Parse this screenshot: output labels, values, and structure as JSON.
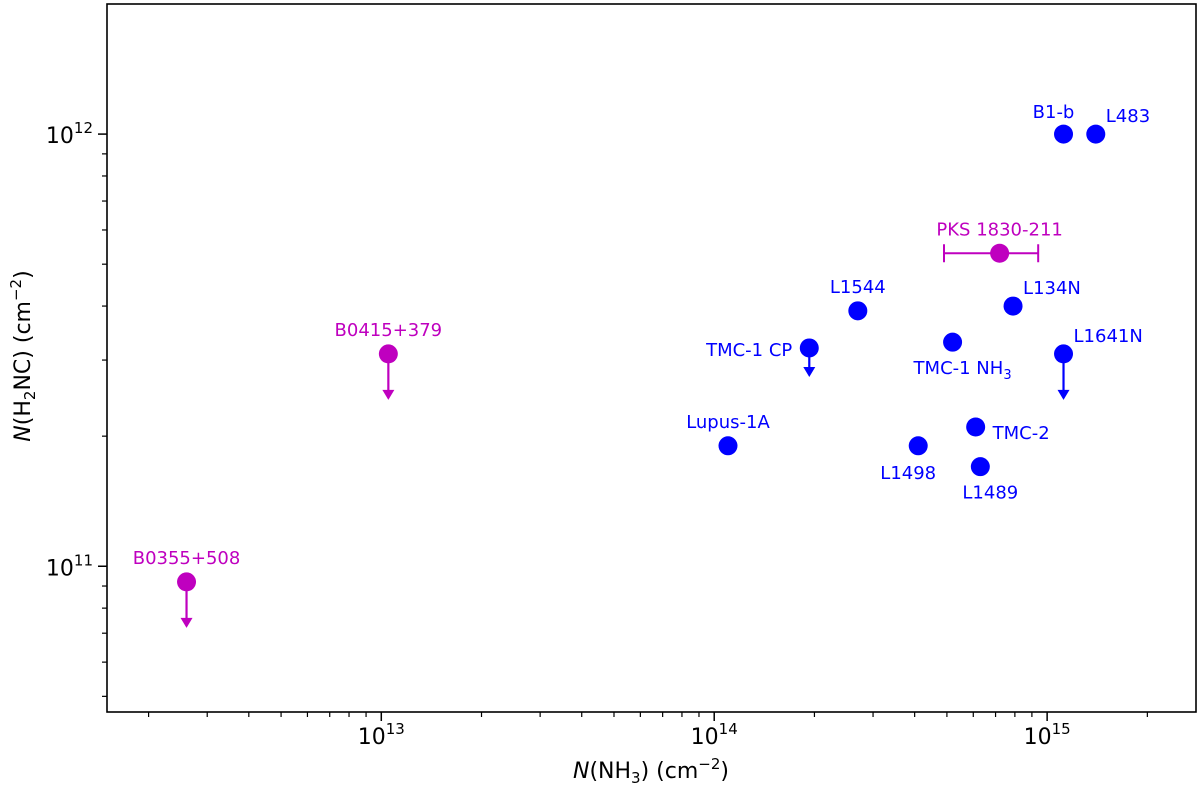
{
  "chart_data": {
    "type": "scatter",
    "title": "",
    "x_axis": {
      "scale": "log",
      "label_italic": "N",
      "label_rest": "(NH",
      "label_sub": "3",
      "label_tail": ") (cm",
      "label_sup": "−2",
      "label_close": ")",
      "range": [
        1500000000000.0,
        2800000000000000.0
      ],
      "ticks": [
        {
          "value": 10000000000000.0,
          "base": "10",
          "exp": "13"
        },
        {
          "value": 100000000000000.0,
          "base": "10",
          "exp": "14"
        },
        {
          "value": 1000000000000000.0,
          "base": "10",
          "exp": "15"
        }
      ]
    },
    "y_axis": {
      "scale": "log",
      "label_italic": "N",
      "label_rest": "(H",
      "label_sub": "2",
      "label_tail": "NC) (cm",
      "label_sup": "−2",
      "label_close": ")",
      "range": [
        46000000000.0,
        2000000000000.0
      ],
      "ticks": [
        {
          "value": 100000000000.0,
          "base": "10",
          "exp": "11"
        },
        {
          "value": 1000000000000.0,
          "base": "10",
          "exp": "12"
        }
      ]
    },
    "colors": {
      "galactic": "#0000ff",
      "extragalactic": "#bf00bf"
    },
    "points": [
      {
        "name": "B1-b",
        "x": 1120000000000000.0,
        "y": 1000000000000.0,
        "group": "galactic",
        "upper_limit": false,
        "label_pos": "above-left"
      },
      {
        "name": "L483",
        "x": 1400000000000000.0,
        "y": 1000000000000.0,
        "group": "galactic",
        "upper_limit": false,
        "label_pos": "above-right"
      },
      {
        "name": "PKS 1830-211",
        "x": 720000000000000.0,
        "y": 530000000000.0,
        "xerr_low": 490000000000000.0,
        "xerr_high": 940000000000000.0,
        "group": "extragalactic",
        "upper_limit": false,
        "label_pos": "above"
      },
      {
        "name": "L1544",
        "x": 270000000000000.0,
        "y": 390000000000.0,
        "group": "galactic",
        "upper_limit": false,
        "label_pos": "above"
      },
      {
        "name": "L134N",
        "x": 790000000000000.0,
        "y": 400000000000.0,
        "group": "galactic",
        "upper_limit": false,
        "label_pos": "above-right"
      },
      {
        "name": "TMC-1 CP",
        "x": 193000000000000.0,
        "y": 320000000000.0,
        "group": "galactic",
        "upper_limit": true,
        "label_pos": "left"
      },
      {
        "name": "TMC-1 NH",
        "label_sub": "3",
        "x": 520000000000000.0,
        "y": 330000000000.0,
        "group": "galactic",
        "upper_limit": false,
        "label_pos": "below"
      },
      {
        "name": "L1641N",
        "x": 1120000000000000.0,
        "y": 310000000000.0,
        "group": "galactic",
        "upper_limit": true,
        "label_pos": "above-right"
      },
      {
        "name": "Lupus-1A",
        "x": 110000000000000.0,
        "y": 190000000000.0,
        "group": "galactic",
        "upper_limit": false,
        "label_pos": "above"
      },
      {
        "name": "L1498",
        "x": 410000000000000.0,
        "y": 190000000000.0,
        "group": "galactic",
        "upper_limit": false,
        "label_pos": "below-left"
      },
      {
        "name": "TMC-2",
        "x": 610000000000000.0,
        "y": 210000000000.0,
        "group": "galactic",
        "upper_limit": false,
        "label_pos": "right"
      },
      {
        "name": "L1489",
        "x": 630000000000000.0,
        "y": 170000000000.0,
        "group": "galactic",
        "upper_limit": false,
        "label_pos": "below-right"
      },
      {
        "name": "B0415+379",
        "x": 10500000000000.0,
        "y": 310000000000.0,
        "group": "extragalactic",
        "upper_limit": true,
        "label_pos": "above"
      },
      {
        "name": "B0355+508",
        "x": 2600000000000.0,
        "y": 92000000000.0,
        "group": "extragalactic",
        "upper_limit": true,
        "label_pos": "above"
      }
    ]
  }
}
